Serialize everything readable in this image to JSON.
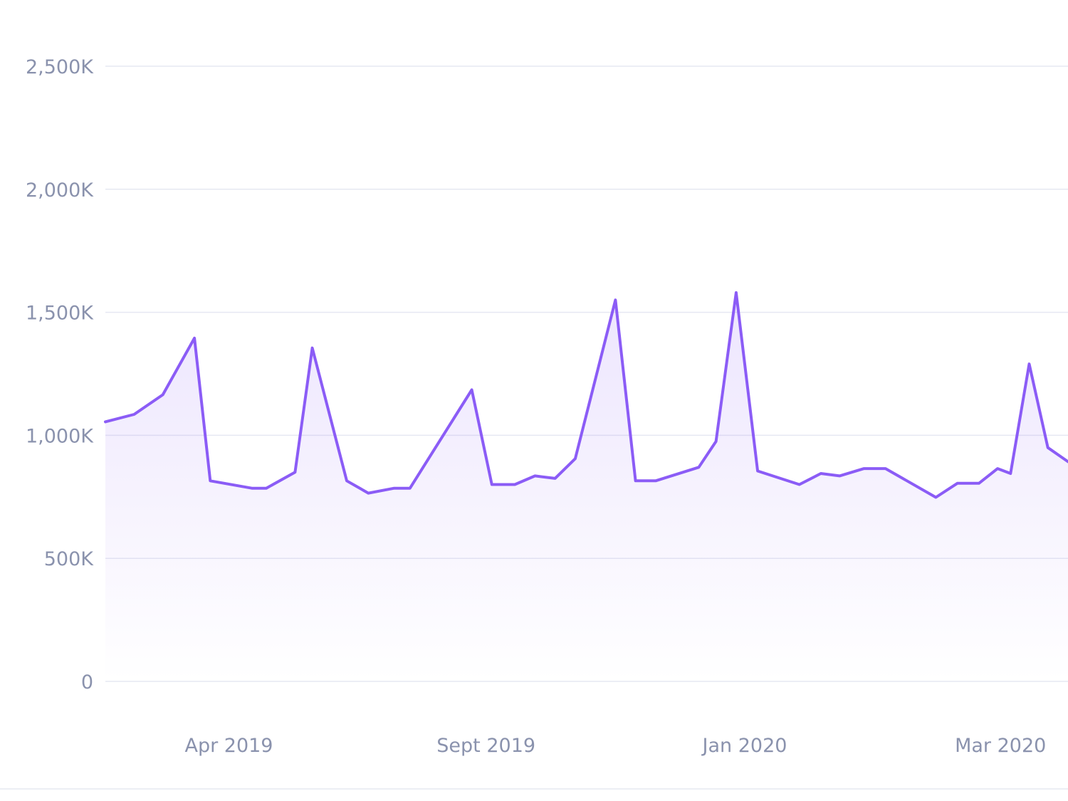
{
  "chart_data": {
    "type": "area",
    "title": "",
    "xlabel": "",
    "ylabel": "",
    "ylim": [
      0,
      2500000
    ],
    "y_ticks": [
      {
        "value": 0,
        "label": "0"
      },
      {
        "value": 500000,
        "label": "500K"
      },
      {
        "value": 1000000,
        "label": "1,000K"
      },
      {
        "value": 1500000,
        "label": "1,500K"
      },
      {
        "value": 2000000,
        "label": "2,000K"
      },
      {
        "value": 2500000,
        "label": "2,500K"
      }
    ],
    "x_ticks": [
      {
        "index": 8.6,
        "label": "Apr 2019"
      },
      {
        "index": 26.5,
        "label": "Sept 2019"
      },
      {
        "index": 44.5,
        "label": "Jan 2020"
      },
      {
        "index": 62.3,
        "label": "Mar 2020"
      }
    ],
    "x_range": [
      0,
      67
    ],
    "grid": true,
    "series": [
      {
        "color": "#8b5cf6",
        "fill_color": "#8b5cf6",
        "points": [
          [
            0,
            1055000
          ],
          [
            2,
            1085000
          ],
          [
            4,
            1165000
          ],
          [
            6.2,
            1395000
          ],
          [
            7.3,
            815000
          ],
          [
            10.2,
            785000
          ],
          [
            11.2,
            785000
          ],
          [
            13.2,
            850000
          ],
          [
            14.4,
            1355000
          ],
          [
            16.8,
            815000
          ],
          [
            18.3,
            765000
          ],
          [
            20.1,
            785000
          ],
          [
            21.2,
            785000
          ],
          [
            25.5,
            1185000
          ],
          [
            26.9,
            800000
          ],
          [
            28.5,
            800000
          ],
          [
            29.9,
            835000
          ],
          [
            31.3,
            825000
          ],
          [
            32.7,
            905000
          ],
          [
            35.5,
            1550000
          ],
          [
            36.9,
            815000
          ],
          [
            38.3,
            815000
          ],
          [
            41.3,
            870000
          ],
          [
            42.5,
            975000
          ],
          [
            43.9,
            1580000
          ],
          [
            45.4,
            855000
          ],
          [
            48.3,
            800000
          ],
          [
            49.8,
            845000
          ],
          [
            51.1,
            835000
          ],
          [
            52.8,
            865000
          ],
          [
            54.3,
            865000
          ],
          [
            57.8,
            748000
          ],
          [
            59.3,
            805000
          ],
          [
            60.8,
            805000
          ],
          [
            62.1,
            865000
          ],
          [
            63.0,
            845000
          ],
          [
            64.3,
            1290000
          ],
          [
            65.6,
            950000
          ],
          [
            67.0,
            893000
          ]
        ]
      }
    ]
  }
}
